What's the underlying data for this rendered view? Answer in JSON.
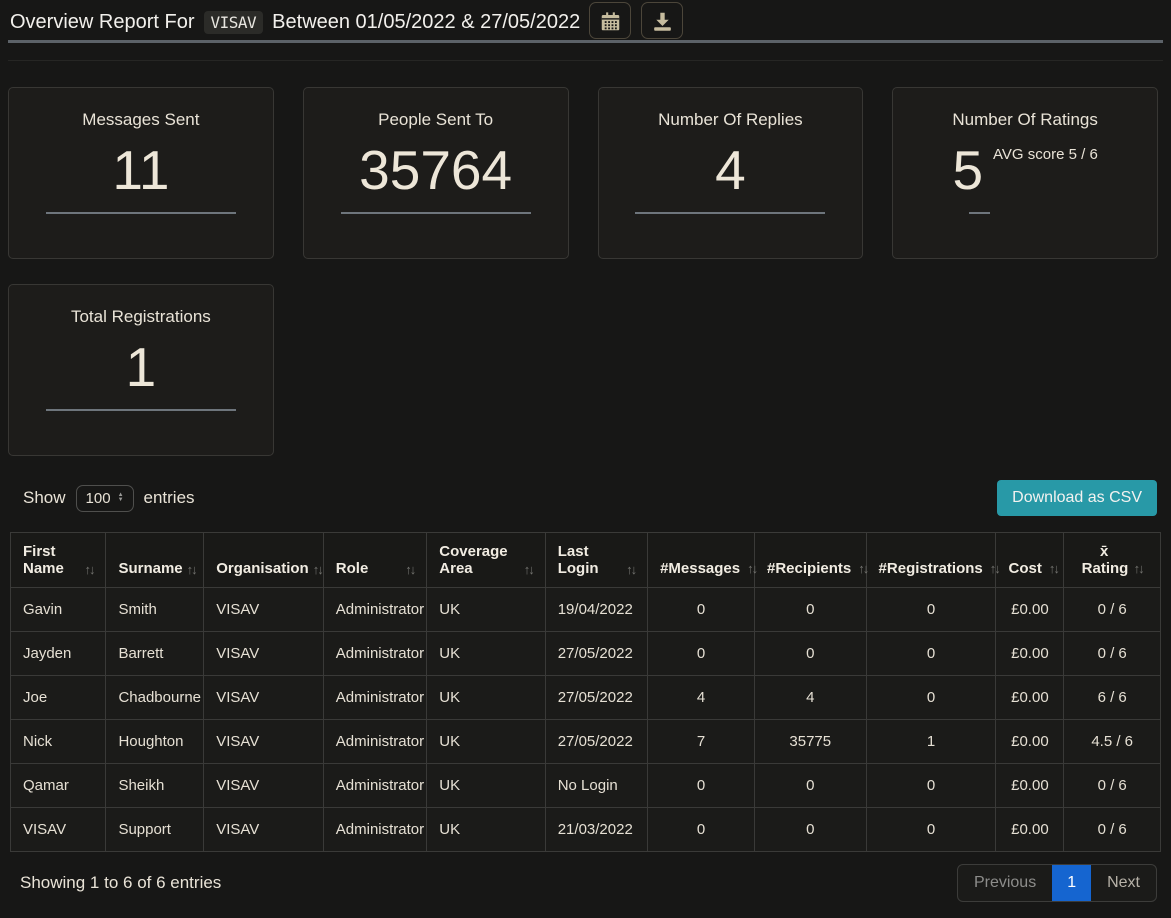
{
  "header": {
    "title_prefix": "Overview Report For",
    "org_code": "VISAV",
    "title_suffix": "Between 01/05/2022 & 27/05/2022"
  },
  "icons": {
    "calendar": "calendar-icon",
    "download": "download-icon",
    "sort": "↑↓",
    "select_up": "▲",
    "select_down": "▼"
  },
  "cards": [
    {
      "label": "Messages Sent",
      "value": "11"
    },
    {
      "label": "People Sent To",
      "value": "35764"
    },
    {
      "label": "Number Of Replies",
      "value": "4"
    },
    {
      "label": "Number Of Ratings",
      "value": "5",
      "sup": "AVG score 5 / 6"
    },
    {
      "label": "Total Registrations",
      "value": "1"
    }
  ],
  "table_controls": {
    "show_label": "Show",
    "page_size": "100",
    "entries_label": "entries",
    "download_csv_label": "Download as CSV"
  },
  "table": {
    "columns": [
      "First Name",
      "Surname",
      "Organisation",
      "Role",
      "Coverage Area",
      "Last Login",
      "#Messages",
      "#Recipients",
      "#Registrations",
      "Cost",
      "x̄ Rating"
    ],
    "rows": [
      [
        "Gavin",
        "Smith",
        "VISAV",
        "Administrator",
        "UK",
        "19/04/2022",
        "0",
        "0",
        "0",
        "£0.00",
        "0 / 6"
      ],
      [
        "Jayden",
        "Barrett",
        "VISAV",
        "Administrator",
        "UK",
        "27/05/2022",
        "0",
        "0",
        "0",
        "£0.00",
        "0 / 6"
      ],
      [
        "Joe",
        "Chadbourne",
        "VISAV",
        "Administrator",
        "UK",
        "27/05/2022",
        "4",
        "4",
        "0",
        "£0.00",
        "6 / 6"
      ],
      [
        "Nick",
        "Houghton",
        "VISAV",
        "Administrator",
        "UK",
        "27/05/2022",
        "7",
        "35775",
        "1",
        "£0.00",
        "4.5 / 6"
      ],
      [
        "Qamar",
        "Sheikh",
        "VISAV",
        "Administrator",
        "UK",
        "No Login",
        "0",
        "0",
        "0",
        "£0.00",
        "0 / 6"
      ],
      [
        "VISAV",
        "Support",
        "VISAV",
        "Administrator",
        "UK",
        "21/03/2022",
        "0",
        "0",
        "0",
        "£0.00",
        "0 / 6"
      ]
    ]
  },
  "footer": {
    "showing_text": "Showing 1 to 6 of 6 entries",
    "previous_label": "Previous",
    "current_page": "1",
    "next_label": "Next"
  },
  "colors": {
    "accent_teal": "#2899a7",
    "active_page_blue": "#1565d0",
    "card_divider_gray": "#6e757c"
  }
}
